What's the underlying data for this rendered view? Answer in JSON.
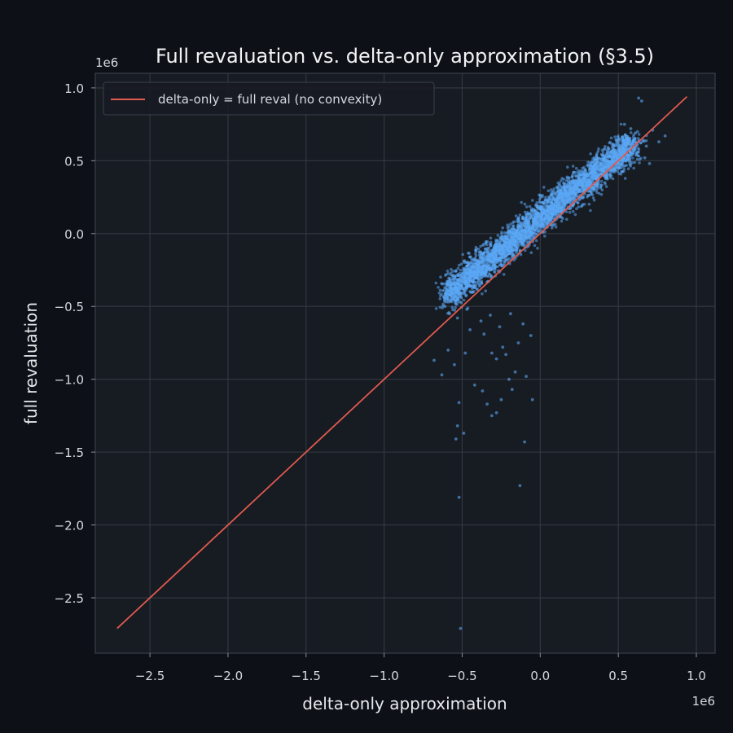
{
  "chart_data": {
    "type": "scatter",
    "title": "Full revaluation vs. delta-only approximation (§3.5)",
    "xlabel": "delta-only approximation",
    "ylabel": "full revaluation",
    "x_offset_text": "1e6",
    "y_offset_text": "1e6",
    "xlim": [
      -2.85,
      1.12
    ],
    "ylim": [
      -2.88,
      1.1
    ],
    "x_ticks": [
      -2.5,
      -2.0,
      -1.5,
      -1.0,
      -0.5,
      0.0,
      0.5,
      1.0
    ],
    "x_tick_labels": [
      "−2.5",
      "−2.0",
      "−1.5",
      "−1.0",
      "−0.5",
      "0.0",
      "0.5",
      "1.0"
    ],
    "y_ticks": [
      1.0,
      0.5,
      0.0,
      -0.5,
      -1.0,
      -1.5,
      -2.0,
      -2.5
    ],
    "y_tick_labels": [
      "1.0",
      "0.5",
      "0.0",
      "−0.5",
      "−1.0",
      "−1.5",
      "−2.0",
      "−2.5"
    ],
    "grid": true,
    "legend_position": "top-left",
    "reference_line": {
      "name": "delta-only = full reval (no convexity)",
      "x": [
        -2.71,
        0.94
      ],
      "y": [
        -2.71,
        0.94
      ],
      "color": "#e05a4e"
    },
    "scatter_series": {
      "color": "#5ba8f5",
      "points": [
        [
          -0.52,
          -1.81
        ],
        [
          -0.51,
          -2.71
        ],
        [
          -0.13,
          -1.73
        ],
        [
          -0.1,
          -1.43
        ],
        [
          -0.54,
          -1.41
        ],
        [
          -0.53,
          -1.32
        ],
        [
          -0.49,
          -1.37
        ],
        [
          -0.31,
          -1.25
        ],
        [
          -0.28,
          -1.23
        ],
        [
          -0.34,
          -1.17
        ],
        [
          -0.52,
          -1.16
        ],
        [
          -0.05,
          -1.14
        ],
        [
          -0.25,
          -1.14
        ],
        [
          -0.37,
          -1.08
        ],
        [
          -0.18,
          -1.07
        ],
        [
          -0.42,
          -1.04
        ],
        [
          -0.2,
          -1.0
        ],
        [
          -0.09,
          -0.98
        ],
        [
          -0.63,
          -0.97
        ],
        [
          -0.16,
          -0.95
        ],
        [
          -0.55,
          -0.9
        ],
        [
          -0.68,
          -0.87
        ],
        [
          -0.28,
          -0.86
        ],
        [
          -0.22,
          -0.83
        ],
        [
          -0.31,
          -0.82
        ],
        [
          -0.48,
          -0.82
        ],
        [
          -0.59,
          -0.8
        ],
        [
          -0.24,
          -0.78
        ],
        [
          -0.14,
          -0.75
        ],
        [
          -0.06,
          -0.7
        ],
        [
          -0.36,
          -0.69
        ],
        [
          -0.45,
          -0.66
        ],
        [
          -0.26,
          -0.64
        ],
        [
          -0.11,
          -0.62
        ],
        [
          -0.38,
          -0.6
        ],
        [
          -0.53,
          -0.58
        ],
        [
          -0.58,
          -0.55
        ],
        [
          -0.32,
          -0.56
        ],
        [
          -0.19,
          -0.55
        ],
        [
          -0.47,
          -0.52
        ],
        [
          -0.61,
          -0.5
        ],
        [
          0.63,
          0.93
        ],
        [
          0.65,
          0.91
        ],
        [
          0.8,
          0.67
        ],
        [
          0.72,
          0.71
        ],
        [
          0.76,
          0.63
        ],
        [
          0.68,
          0.6
        ],
        [
          0.67,
          0.52
        ],
        [
          0.7,
          0.48
        ],
        [
          0.54,
          0.75
        ],
        [
          0.58,
          0.72
        ],
        [
          0.61,
          0.69
        ],
        [
          0.49,
          0.64
        ]
      ],
      "cloud_axis_from": [
        -0.6,
        -0.4
      ],
      "cloud_axis_to": [
        0.6,
        0.62
      ],
      "cloud_point_count": 3500
    }
  }
}
